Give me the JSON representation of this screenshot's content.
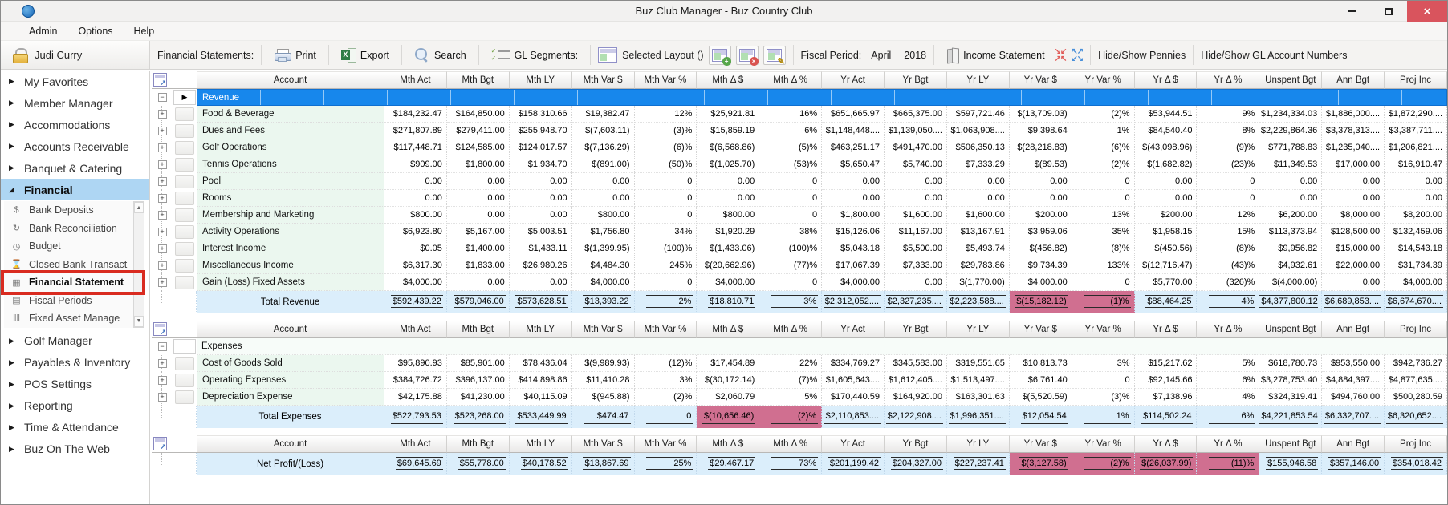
{
  "window": {
    "title": "Buz Club Manager - Buz Country Club"
  },
  "menu": [
    "Admin",
    "Options",
    "Help"
  ],
  "toolbar": {
    "user": "Judi Curry",
    "section_label": "Financial Statements:",
    "print": "Print",
    "export": "Export",
    "search": "Search",
    "gl_segments": "GL Segments:",
    "selected_layout": "Selected Layout ()",
    "fiscal_period_label": "Fiscal Period:",
    "fiscal_month": "April",
    "fiscal_year": "2018",
    "income_statement": "Income Statement",
    "hide_pennies": "Hide/Show Pennies",
    "hide_gl_numbers": "Hide/Show GL Account Numbers"
  },
  "sidebar": {
    "top": [
      "My Favorites",
      "Member Manager",
      "Accommodations",
      "Accounts Receivable",
      "Banquet & Catering"
    ],
    "active_section": "Financial",
    "submenu": [
      {
        "icon": "$",
        "label": "Bank Deposits"
      },
      {
        "icon": "↻",
        "label": "Bank Reconciliation"
      },
      {
        "icon": "◷",
        "label": "Budget"
      },
      {
        "icon": "⌛",
        "label": "Closed Bank Transact"
      },
      {
        "icon": "▦",
        "label": "Financial Statement",
        "active": true
      },
      {
        "icon": "▤",
        "label": "Fiscal Periods"
      },
      {
        "icon": "‖‖",
        "label": "Fixed Asset Manage"
      }
    ],
    "bottom": [
      "Golf Manager",
      "Payables & Inventory",
      "POS Settings",
      "Reporting",
      "Time & Attendance",
      "Buz On The Web"
    ]
  },
  "table": {
    "columns": [
      "Account",
      "Mth Act",
      "Mth Bgt",
      "Mth LY",
      "Mth Var $",
      "Mth Var %",
      "Mth Δ $",
      "Mth Δ %",
      "Yr Act",
      "Yr Bgt",
      "Yr LY",
      "Yr Var $",
      "Yr Var %",
      "Yr Δ $",
      "Yr Δ %",
      "Unspent Bgt",
      "Ann Bgt",
      "Proj Inc"
    ],
    "grids": [
      {
        "name": "revenue",
        "group": "Revenue",
        "selected": true,
        "rows": [
          {
            "label": "Food & Beverage",
            "values": [
              "$184,232.47",
              "$164,850.00",
              "$158,310.66",
              "$19,382.47",
              "12%",
              "$25,921.81",
              "16%",
              "$651,665.97",
              "$665,375.00",
              "$597,721.46",
              "$(13,709.03)",
              "(2)%",
              "$53,944.51",
              "9%",
              "$1,234,334.03",
              "$1,886,000....",
              "$1,872,290...."
            ]
          },
          {
            "label": "Dues and Fees",
            "values": [
              "$271,807.89",
              "$279,411.00",
              "$255,948.70",
              "$(7,603.11)",
              "(3)%",
              "$15,859.19",
              "6%",
              "$1,148,448....",
              "$1,139,050....",
              "$1,063,908....",
              "$9,398.64",
              "1%",
              "$84,540.40",
              "8%",
              "$2,229,864.36",
              "$3,378,313....",
              "$3,387,711...."
            ]
          },
          {
            "label": "Golf Operations",
            "values": [
              "$117,448.71",
              "$124,585.00",
              "$124,017.57",
              "$(7,136.29)",
              "(6)%",
              "$(6,568.86)",
              "(5)%",
              "$463,251.17",
              "$491,470.00",
              "$506,350.13",
              "$(28,218.83)",
              "(6)%",
              "$(43,098.96)",
              "(9)%",
              "$771,788.83",
              "$1,235,040....",
              "$1,206,821...."
            ]
          },
          {
            "label": "Tennis Operations",
            "values": [
              "$909.00",
              "$1,800.00",
              "$1,934.70",
              "$(891.00)",
              "(50)%",
              "$(1,025.70)",
              "(53)%",
              "$5,650.47",
              "$5,740.00",
              "$7,333.29",
              "$(89.53)",
              "(2)%",
              "$(1,682.82)",
              "(23)%",
              "$11,349.53",
              "$17,000.00",
              "$16,910.47"
            ]
          },
          {
            "label": "Pool",
            "values": [
              "0.00",
              "0.00",
              "0.00",
              "0.00",
              "0",
              "0.00",
              "0",
              "0.00",
              "0.00",
              "0.00",
              "0.00",
              "0",
              "0.00",
              "0",
              "0.00",
              "0.00",
              "0.00"
            ]
          },
          {
            "label": "Rooms",
            "values": [
              "0.00",
              "0.00",
              "0.00",
              "0.00",
              "0",
              "0.00",
              "0",
              "0.00",
              "0.00",
              "0.00",
              "0.00",
              "0",
              "0.00",
              "0",
              "0.00",
              "0.00",
              "0.00"
            ]
          },
          {
            "label": "Membership and Marketing",
            "values": [
              "$800.00",
              "0.00",
              "0.00",
              "$800.00",
              "0",
              "$800.00",
              "0",
              "$1,800.00",
              "$1,600.00",
              "$1,600.00",
              "$200.00",
              "13%",
              "$200.00",
              "12%",
              "$6,200.00",
              "$8,000.00",
              "$8,200.00"
            ]
          },
          {
            "label": "Activity Operations",
            "values": [
              "$6,923.80",
              "$5,167.00",
              "$5,003.51",
              "$1,756.80",
              "34%",
              "$1,920.29",
              "38%",
              "$15,126.06",
              "$11,167.00",
              "$13,167.91",
              "$3,959.06",
              "35%",
              "$1,958.15",
              "15%",
              "$113,373.94",
              "$128,500.00",
              "$132,459.06"
            ]
          },
          {
            "label": "Interest Income",
            "values": [
              "$0.05",
              "$1,400.00",
              "$1,433.11",
              "$(1,399.95)",
              "(100)%",
              "$(1,433.06)",
              "(100)%",
              "$5,043.18",
              "$5,500.00",
              "$5,493.74",
              "$(456.82)",
              "(8)%",
              "$(450.56)",
              "(8)%",
              "$9,956.82",
              "$15,000.00",
              "$14,543.18"
            ]
          },
          {
            "label": "Miscellaneous Income",
            "values": [
              "$6,317.30",
              "$1,833.00",
              "$26,980.26",
              "$4,484.30",
              "245%",
              "$(20,662.96)",
              "(77)%",
              "$17,067.39",
              "$7,333.00",
              "$29,783.86",
              "$9,734.39",
              "133%",
              "$(12,716.47)",
              "(43)%",
              "$4,932.61",
              "$22,000.00",
              "$31,734.39"
            ]
          },
          {
            "label": "Gain (Loss) Fixed Assets",
            "values": [
              "$4,000.00",
              "0.00",
              "0.00",
              "$4,000.00",
              "0",
              "$4,000.00",
              "0",
              "$4,000.00",
              "0.00",
              "$(1,770.00)",
              "$4,000.00",
              "0",
              "$5,770.00",
              "(326)%",
              "$(4,000.00)",
              "0.00",
              "$4,000.00"
            ]
          }
        ],
        "total": {
          "label": "Total Revenue",
          "values": [
            "$592,439.22",
            "$579,046.00",
            "$573,628.51",
            "$13,393.22",
            "2%",
            "$18,810.71",
            "3%",
            "$2,312,052....",
            "$2,327,235....",
            "$2,223,588....",
            "$(15,182.12)",
            "(1)%",
            "$88,464.25",
            "4%",
            "$4,377,800.12",
            "$6,689,853....",
            "$6,674,670...."
          ],
          "pink": [
            10,
            11
          ]
        }
      },
      {
        "name": "expenses",
        "group": "Expenses",
        "selected": false,
        "rows": [
          {
            "label": "Cost of Goods Sold",
            "values": [
              "$95,890.93",
              "$85,901.00",
              "$78,436.04",
              "$(9,989.93)",
              "(12)%",
              "$17,454.89",
              "22%",
              "$334,769.27",
              "$345,583.00",
              "$319,551.65",
              "$10,813.73",
              "3%",
              "$15,217.62",
              "5%",
              "$618,780.73",
              "$953,550.00",
              "$942,736.27"
            ]
          },
          {
            "label": "Operating Expenses",
            "values": [
              "$384,726.72",
              "$396,137.00",
              "$414,898.86",
              "$11,410.28",
              "3%",
              "$(30,172.14)",
              "(7)%",
              "$1,605,643....",
              "$1,612,405....",
              "$1,513,497....",
              "$6,761.40",
              "0",
              "$92,145.66",
              "6%",
              "$3,278,753.40",
              "$4,884,397....",
              "$4,877,635...."
            ]
          },
          {
            "label": "Depreciation Expense",
            "values": [
              "$42,175.88",
              "$41,230.00",
              "$40,115.09",
              "$(945.88)",
              "(2)%",
              "$2,060.79",
              "5%",
              "$170,440.59",
              "$164,920.00",
              "$163,301.63",
              "$(5,520.59)",
              "(3)%",
              "$7,138.96",
              "4%",
              "$324,319.41",
              "$494,760.00",
              "$500,280.59"
            ]
          }
        ],
        "total": {
          "label": "Total Expenses",
          "values": [
            "$522,793.53",
            "$523,268.00",
            "$533,449.99",
            "$474.47",
            "0",
            "$(10,656.46)",
            "(2)%",
            "$2,110,853....",
            "$2,122,908....",
            "$1,996,351....",
            "$12,054.54",
            "1%",
            "$114,502.24",
            "6%",
            "$4,221,853.54",
            "$6,332,707....",
            "$6,320,652...."
          ],
          "pink": [
            5,
            6
          ]
        }
      },
      {
        "name": "net-profit",
        "rows": [],
        "total": {
          "label": "Net Profit/(Loss)",
          "values": [
            "$69,645.69",
            "$55,778.00",
            "$40,178.52",
            "$13,867.69",
            "25%",
            "$29,467.17",
            "73%",
            "$201,199.42",
            "$204,327.00",
            "$227,237.41",
            "$(3,127.58)",
            "(2)%",
            "$(26,037.99)",
            "(11)%",
            "$155,946.58",
            "$357,146.00",
            "$354,018.42"
          ],
          "pink": [
            10,
            11,
            12,
            13
          ]
        }
      }
    ]
  },
  "colors": {
    "group_header_blue": "#1787ec",
    "negative_highlight_pink": "#d06f90",
    "sidebar_selection_blue": "#aed6f3",
    "total_row_blue": "#dbeefb",
    "close_button_red": "#d9545d",
    "annotation_red": "#d92b20"
  }
}
